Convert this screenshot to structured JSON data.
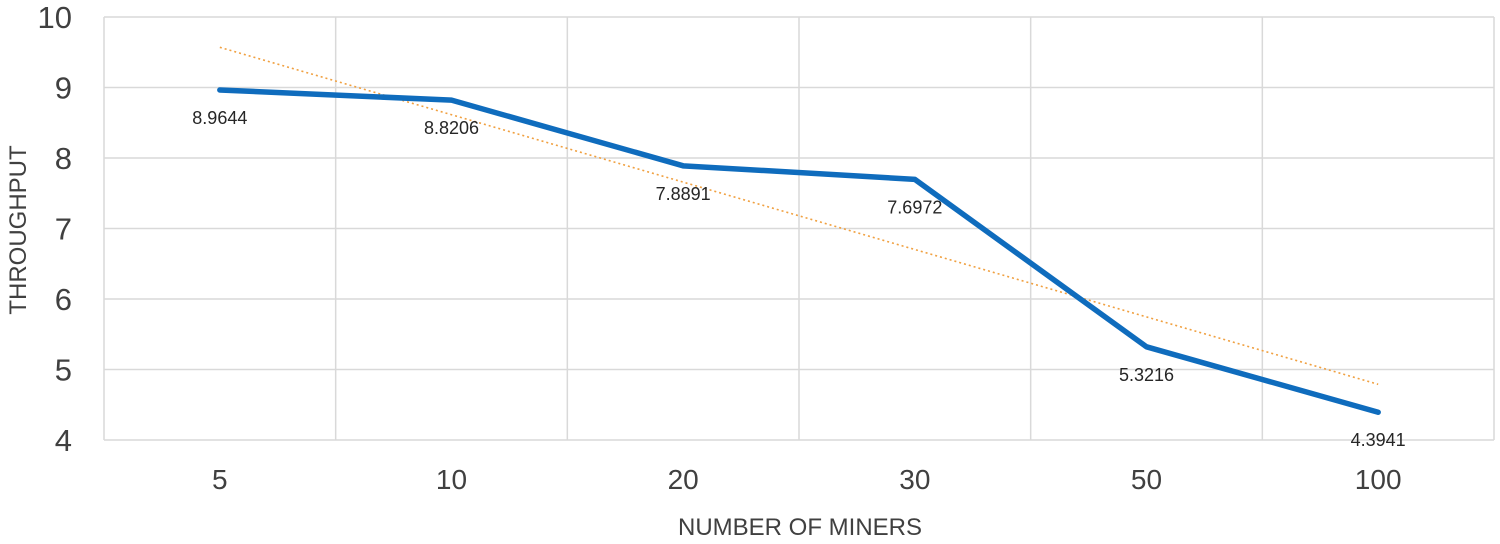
{
  "chart_data": {
    "type": "line",
    "title": "",
    "xlabel": "NUMBER OF MINERS",
    "ylabel": "THROUGHPUT",
    "categories": [
      "5",
      "10",
      "20",
      "30",
      "50",
      "100"
    ],
    "series": [
      {
        "values": [
          8.9644,
          8.8206,
          7.8891,
          7.6972,
          5.3216,
          4.3941
        ],
        "data_labels": [
          "8.9644",
          "8.8206",
          "7.8891",
          "7.6972",
          "5.3216",
          "4.3941"
        ],
        "color": "#0f6cbd"
      }
    ],
    "trendline": {
      "type": "linear",
      "start_value": 9.57,
      "end_value": 4.79,
      "color": "#f0a040"
    },
    "ylim": [
      4,
      10
    ],
    "yticks": [
      "4",
      "5",
      "6",
      "7",
      "8",
      "9",
      "10"
    ],
    "grid": true,
    "legend": "none"
  }
}
